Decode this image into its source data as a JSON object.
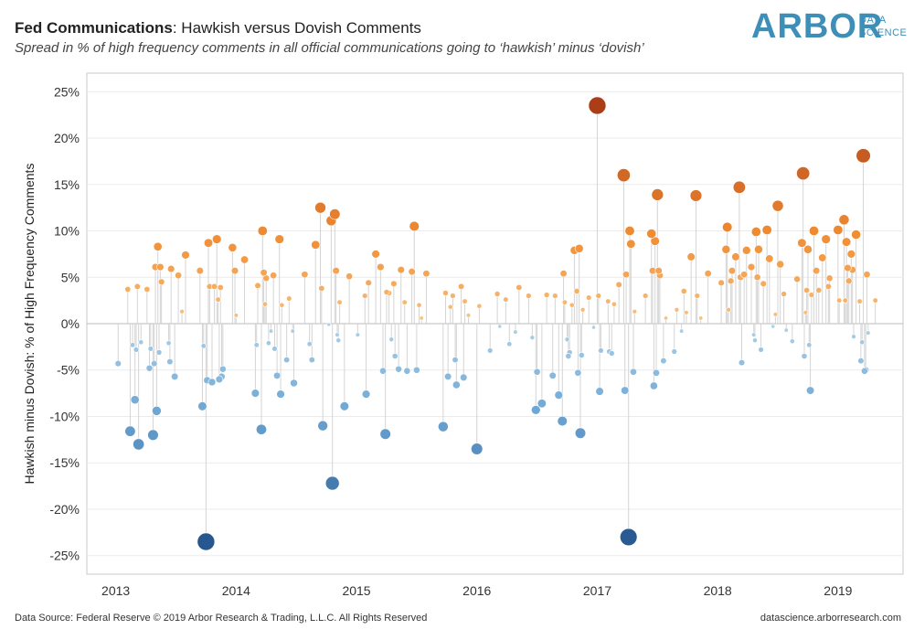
{
  "header": {
    "title_bold": "Fed Communications",
    "title_rest": ": Hawkish versus Dovish Comments",
    "subtitle": "Spread in % of high frequency comments in all official communications going to ‘hawkish’ minus ‘dovish’"
  },
  "logo": {
    "main": "ARBOR",
    "line1": "DATA",
    "line2": "SCIENCE",
    "color": "#3d8fb8"
  },
  "footer": {
    "left": "Data Source: Federal Reserve © 2019 Arbor Research & Trading, L.L.C. All Rights Reserved",
    "right": "datascience.arborresearch.com"
  },
  "colors": {
    "hawkish": "#e8702a",
    "dovish": "#5b9bd0",
    "stem": "#d4d4d4"
  },
  "chart_data": {
    "type": "scatter",
    "ylabel": "Hawkish minus Dovish: % of High Frequency Comments",
    "xlabel": "",
    "xlim": [
      2012.76,
      2019.54
    ],
    "ylim": [
      -27,
      27
    ],
    "yticks": [
      -25,
      -20,
      -15,
      -10,
      -5,
      0,
      5,
      10,
      15,
      20,
      25
    ],
    "ytick_labels": [
      "-25%",
      "-20%",
      "-15%",
      "-10%",
      "-5%",
      "0%",
      "5%",
      "10%",
      "15%",
      "20%",
      "25%"
    ],
    "xticks": [
      2013,
      2014,
      2015,
      2016,
      2017,
      2018,
      2019
    ],
    "xtick_labels": [
      "2013",
      "2014",
      "2015",
      "2016",
      "2017",
      "2018",
      "2019"
    ],
    "grid": "horizontal",
    "series": [
      {
        "points": [
          [
            2013.02,
            -4.3
          ],
          [
            2013.1,
            3.7
          ],
          [
            2013.12,
            -11.6
          ],
          [
            2013.14,
            -2.3
          ],
          [
            2013.16,
            -8.2
          ],
          [
            2013.17,
            -2.8
          ],
          [
            2013.18,
            4.0
          ],
          [
            2013.19,
            -13.0
          ],
          [
            2013.21,
            -2.0
          ],
          [
            2013.26,
            3.7
          ],
          [
            2013.28,
            -4.8
          ],
          [
            2013.29,
            -2.7
          ],
          [
            2013.31,
            -12.0
          ],
          [
            2013.32,
            -4.3
          ],
          [
            2013.33,
            6.1
          ],
          [
            2013.34,
            -9.4
          ],
          [
            2013.35,
            8.3
          ],
          [
            2013.36,
            -3.1
          ],
          [
            2013.37,
            6.1
          ],
          [
            2013.38,
            4.5
          ],
          [
            2013.44,
            -2.1
          ],
          [
            2013.45,
            -4.1
          ],
          [
            2013.46,
            5.9
          ],
          [
            2013.49,
            -5.7
          ],
          [
            2013.52,
            5.2
          ],
          [
            2013.55,
            1.3
          ],
          [
            2013.58,
            7.4
          ],
          [
            2013.7,
            5.7
          ],
          [
            2013.72,
            -8.9
          ],
          [
            2013.73,
            -2.4
          ],
          [
            2013.75,
            -23.5
          ],
          [
            2013.76,
            -6.1
          ],
          [
            2013.77,
            8.7
          ],
          [
            2013.78,
            4.0
          ],
          [
            2013.8,
            -6.3
          ],
          [
            2013.82,
            4.0
          ],
          [
            2013.84,
            9.1
          ],
          [
            2013.85,
            2.6
          ],
          [
            2013.86,
            -6.0
          ],
          [
            2013.87,
            3.9
          ],
          [
            2013.88,
            -5.7
          ],
          [
            2013.89,
            -4.9
          ],
          [
            2013.97,
            8.2
          ],
          [
            2013.99,
            5.7
          ],
          [
            2014.0,
            0.9
          ],
          [
            2014.07,
            6.9
          ],
          [
            2014.16,
            -7.5
          ],
          [
            2014.17,
            -2.3
          ],
          [
            2014.18,
            4.1
          ],
          [
            2014.21,
            -11.4
          ],
          [
            2014.22,
            10.0
          ],
          [
            2014.23,
            5.5
          ],
          [
            2014.24,
            2.1
          ],
          [
            2014.25,
            4.9
          ],
          [
            2014.27,
            -2.1
          ],
          [
            2014.29,
            -0.8
          ],
          [
            2014.31,
            5.2
          ],
          [
            2014.32,
            -2.7
          ],
          [
            2014.34,
            -5.6
          ],
          [
            2014.36,
            9.1
          ],
          [
            2014.37,
            -7.6
          ],
          [
            2014.38,
            2.0
          ],
          [
            2014.42,
            -3.9
          ],
          [
            2014.44,
            2.7
          ],
          [
            2014.47,
            -0.8
          ],
          [
            2014.48,
            -6.4
          ],
          [
            2014.57,
            5.3
          ],
          [
            2014.61,
            -2.2
          ],
          [
            2014.63,
            -3.9
          ],
          [
            2014.66,
            8.5
          ],
          [
            2014.7,
            12.5
          ],
          [
            2014.71,
            3.8
          ],
          [
            2014.72,
            -11.0
          ],
          [
            2014.77,
            -0.1
          ],
          [
            2014.79,
            11.1
          ],
          [
            2014.8,
            -17.2
          ],
          [
            2014.82,
            11.8
          ],
          [
            2014.83,
            5.7
          ],
          [
            2014.84,
            -1.2
          ],
          [
            2014.85,
            -1.8
          ],
          [
            2014.86,
            2.3
          ],
          [
            2014.9,
            -8.9
          ],
          [
            2014.94,
            5.1
          ],
          [
            2015.01,
            -1.2
          ],
          [
            2015.07,
            3.0
          ],
          [
            2015.08,
            -7.6
          ],
          [
            2015.1,
            4.4
          ],
          [
            2015.16,
            7.5
          ],
          [
            2015.2,
            6.1
          ],
          [
            2015.22,
            -5.1
          ],
          [
            2015.24,
            -11.9
          ],
          [
            2015.25,
            3.4
          ],
          [
            2015.27,
            3.3
          ],
          [
            2015.29,
            -1.7
          ],
          [
            2015.31,
            4.3
          ],
          [
            2015.32,
            -3.5
          ],
          [
            2015.35,
            -4.9
          ],
          [
            2015.37,
            5.8
          ],
          [
            2015.4,
            2.3
          ],
          [
            2015.42,
            -5.1
          ],
          [
            2015.46,
            5.6
          ],
          [
            2015.48,
            10.5
          ],
          [
            2015.5,
            -5.0
          ],
          [
            2015.52,
            2.0
          ],
          [
            2015.54,
            0.6
          ],
          [
            2015.58,
            5.4
          ],
          [
            2015.72,
            -11.1
          ],
          [
            2015.74,
            3.3
          ],
          [
            2015.76,
            -5.7
          ],
          [
            2015.78,
            1.8
          ],
          [
            2015.8,
            3.0
          ],
          [
            2015.82,
            -3.9
          ],
          [
            2015.83,
            -6.6
          ],
          [
            2015.87,
            4.0
          ],
          [
            2015.89,
            -5.8
          ],
          [
            2015.9,
            2.4
          ],
          [
            2015.93,
            0.9
          ],
          [
            2016.0,
            -13.5
          ],
          [
            2016.02,
            1.9
          ],
          [
            2016.11,
            -2.9
          ],
          [
            2016.17,
            3.2
          ],
          [
            2016.19,
            -0.3
          ],
          [
            2016.24,
            2.6
          ],
          [
            2016.27,
            -2.2
          ],
          [
            2016.32,
            -0.9
          ],
          [
            2016.35,
            3.9
          ],
          [
            2016.43,
            3.0
          ],
          [
            2016.46,
            -1.5
          ],
          [
            2016.49,
            -9.3
          ],
          [
            2016.5,
            -5.2
          ],
          [
            2016.54,
            -8.6
          ],
          [
            2016.58,
            3.1
          ],
          [
            2016.63,
            -5.6
          ],
          [
            2016.65,
            3.0
          ],
          [
            2016.68,
            -7.7
          ],
          [
            2016.71,
            -10.5
          ],
          [
            2016.72,
            5.4
          ],
          [
            2016.73,
            2.3
          ],
          [
            2016.75,
            -1.7
          ],
          [
            2016.76,
            -3.5
          ],
          [
            2016.77,
            -3.1
          ],
          [
            2016.79,
            2.0
          ],
          [
            2016.81,
            7.9
          ],
          [
            2016.83,
            3.5
          ],
          [
            2016.84,
            -5.3
          ],
          [
            2016.85,
            8.1
          ],
          [
            2016.86,
            -11.8
          ],
          [
            2016.87,
            -3.4
          ],
          [
            2016.88,
            1.5
          ],
          [
            2016.93,
            2.8
          ],
          [
            2016.97,
            -0.4
          ],
          [
            2017.0,
            23.5
          ],
          [
            2017.01,
            3.0
          ],
          [
            2017.02,
            -7.3
          ],
          [
            2017.03,
            -2.9
          ],
          [
            2017.09,
            2.4
          ],
          [
            2017.1,
            -3.0
          ],
          [
            2017.12,
            -3.2
          ],
          [
            2017.14,
            2.1
          ],
          [
            2017.18,
            4.2
          ],
          [
            2017.22,
            16.0
          ],
          [
            2017.23,
            -7.2
          ],
          [
            2017.24,
            5.3
          ],
          [
            2017.26,
            -23.0
          ],
          [
            2017.27,
            10.0
          ],
          [
            2017.28,
            8.6
          ],
          [
            2017.3,
            -5.2
          ],
          [
            2017.31,
            1.3
          ],
          [
            2017.4,
            3.0
          ],
          [
            2017.45,
            9.7
          ],
          [
            2017.46,
            5.7
          ],
          [
            2017.47,
            -6.7
          ],
          [
            2017.48,
            8.9
          ],
          [
            2017.49,
            -5.3
          ],
          [
            2017.5,
            13.9
          ],
          [
            2017.51,
            5.7
          ],
          [
            2017.52,
            5.2
          ],
          [
            2017.55,
            -4.0
          ],
          [
            2017.57,
            0.6
          ],
          [
            2017.64,
            -3.0
          ],
          [
            2017.66,
            1.5
          ],
          [
            2017.7,
            -0.8
          ],
          [
            2017.72,
            3.5
          ],
          [
            2017.74,
            1.2
          ],
          [
            2017.78,
            7.2
          ],
          [
            2017.82,
            13.8
          ],
          [
            2017.83,
            3.0
          ],
          [
            2017.86,
            0.6
          ],
          [
            2017.92,
            5.4
          ],
          [
            2018.03,
            4.4
          ],
          [
            2018.07,
            8.0
          ],
          [
            2018.08,
            10.4
          ],
          [
            2018.09,
            1.5
          ],
          [
            2018.11,
            4.6
          ],
          [
            2018.12,
            5.7
          ],
          [
            2018.15,
            7.2
          ],
          [
            2018.18,
            14.7
          ],
          [
            2018.19,
            5.0
          ],
          [
            2018.2,
            -4.2
          ],
          [
            2018.22,
            5.3
          ],
          [
            2018.24,
            7.9
          ],
          [
            2018.28,
            6.1
          ],
          [
            2018.3,
            -1.2
          ],
          [
            2018.31,
            -1.8
          ],
          [
            2018.32,
            9.9
          ],
          [
            2018.33,
            5.0
          ],
          [
            2018.34,
            8.0
          ],
          [
            2018.36,
            -2.8
          ],
          [
            2018.38,
            4.3
          ],
          [
            2018.41,
            10.1
          ],
          [
            2018.43,
            7.0
          ],
          [
            2018.46,
            -0.3
          ],
          [
            2018.48,
            1.0
          ],
          [
            2018.5,
            12.7
          ],
          [
            2018.52,
            6.4
          ],
          [
            2018.55,
            3.2
          ],
          [
            2018.57,
            -0.7
          ],
          [
            2018.62,
            -1.9
          ],
          [
            2018.66,
            4.8
          ],
          [
            2018.7,
            8.7
          ],
          [
            2018.71,
            16.2
          ],
          [
            2018.72,
            -3.5
          ],
          [
            2018.73,
            1.2
          ],
          [
            2018.74,
            3.6
          ],
          [
            2018.75,
            8.0
          ],
          [
            2018.76,
            -2.3
          ],
          [
            2018.77,
            -7.2
          ],
          [
            2018.78,
            3.1
          ],
          [
            2018.8,
            10.0
          ],
          [
            2018.82,
            5.7
          ],
          [
            2018.84,
            3.6
          ],
          [
            2018.87,
            7.1
          ],
          [
            2018.9,
            9.1
          ],
          [
            2018.92,
            4.0
          ],
          [
            2018.93,
            4.9
          ],
          [
            2019.0,
            10.1
          ],
          [
            2019.01,
            2.5
          ],
          [
            2019.05,
            11.2
          ],
          [
            2019.06,
            2.5
          ],
          [
            2019.07,
            8.8
          ],
          [
            2019.08,
            6.0
          ],
          [
            2019.09,
            4.6
          ],
          [
            2019.11,
            7.5
          ],
          [
            2019.12,
            5.8
          ],
          [
            2019.13,
            -1.4
          ],
          [
            2019.15,
            9.6
          ],
          [
            2019.18,
            2.4
          ],
          [
            2019.19,
            -4.0
          ],
          [
            2019.2,
            -2.0
          ],
          [
            2019.21,
            18.1
          ],
          [
            2019.22,
            -5.1
          ],
          [
            2019.23,
            -5.0
          ],
          [
            2019.24,
            5.3
          ],
          [
            2019.25,
            -1.0
          ],
          [
            2019.31,
            2.5
          ]
        ]
      }
    ]
  }
}
